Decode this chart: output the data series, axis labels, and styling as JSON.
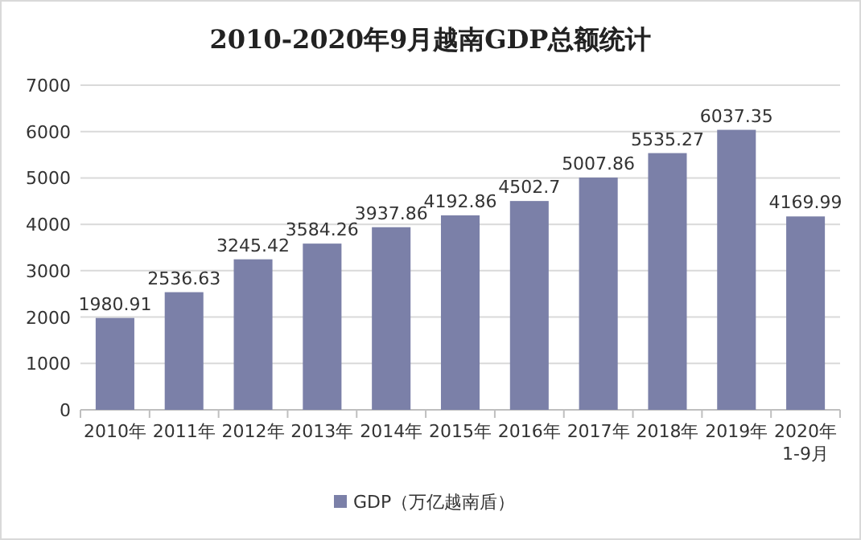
{
  "chart_data": {
    "type": "bar",
    "title": "2010-2020年9月越南GDP总额统计",
    "categories": [
      "2010年",
      "2011年",
      "2012年",
      "2013年",
      "2014年",
      "2015年",
      "2016年",
      "2017年",
      "2018年",
      "2019年",
      "2020年1-9月"
    ],
    "series": [
      {
        "name": "GDP（万亿越南盾）",
        "color": "#7b80a8",
        "values": [
          1980.91,
          2536.63,
          3245.42,
          3584.26,
          3937.86,
          4192.86,
          4502.7,
          5007.86,
          5535.27,
          6037.35,
          4169.99
        ]
      }
    ],
    "ylim": [
      0,
      7000
    ],
    "yticks": [
      0,
      1000,
      2000,
      3000,
      4000,
      5000,
      6000,
      7000
    ],
    "grid": "y",
    "legend": "bottom",
    "data_labels": true
  }
}
